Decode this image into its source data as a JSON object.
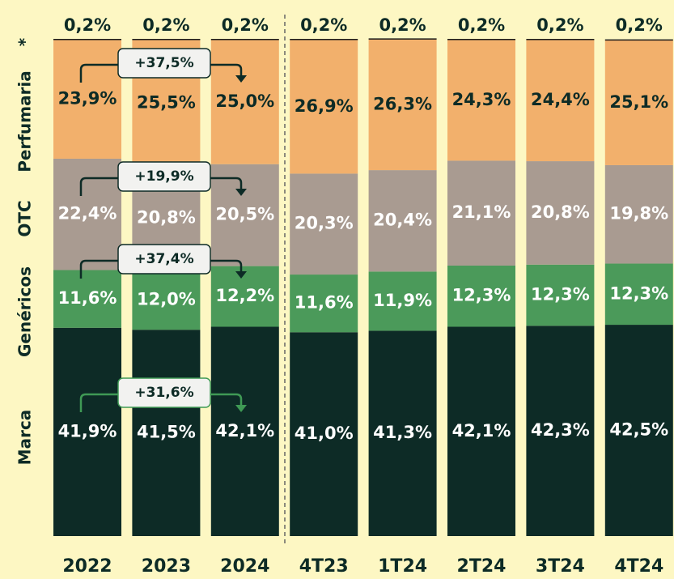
{
  "chart_data": {
    "type": "stacked_bar",
    "categories": [
      "2022",
      "2023",
      "2024",
      "4T23",
      "1T24",
      "2T24",
      "3T24",
      "4T24"
    ],
    "ylim": [
      0,
      100
    ],
    "series": [
      {
        "name": "Marca",
        "color": "#0d2b26",
        "values": [
          41.9,
          41.5,
          42.1,
          41.0,
          41.3,
          42.1,
          42.3,
          42.5
        ],
        "value_labels": [
          "41,9%",
          "41,5%",
          "42,1%",
          "41,0%",
          "41,3%",
          "42,1%",
          "42,3%",
          "42,5%"
        ]
      },
      {
        "name": "Genéricos",
        "color": "#4b9a5a",
        "values": [
          11.6,
          12.0,
          12.2,
          11.6,
          11.9,
          12.3,
          12.3,
          12.3
        ],
        "value_labels": [
          "11,6%",
          "12,0%",
          "12,2%",
          "11,6%",
          "11,9%",
          "12,3%",
          "12,3%",
          "12,3%"
        ]
      },
      {
        "name": "OTC",
        "color": "#a99b91",
        "values": [
          22.4,
          20.8,
          20.5,
          20.3,
          20.4,
          21.1,
          20.8,
          19.8
        ],
        "value_labels": [
          "22,4%",
          "20,8%",
          "20,5%",
          "20,3%",
          "20,4%",
          "21,1%",
          "20,8%",
          "19,8%"
        ]
      },
      {
        "name": "Perfumaria",
        "color": "#f2b06c",
        "values": [
          23.9,
          25.5,
          25.0,
          26.9,
          26.3,
          24.3,
          24.4,
          25.1
        ],
        "value_labels": [
          "23,9%",
          "25,5%",
          "25,0%",
          "26,9%",
          "26,3%",
          "24,3%",
          "24,4%",
          "25,1%"
        ]
      },
      {
        "name": "*",
        "color": "#1b1b1b",
        "values": [
          0.2,
          0.2,
          0.2,
          0.2,
          0.2,
          0.2,
          0.2,
          0.2
        ],
        "value_labels": [
          "0,2%",
          "0,2%",
          "0,2%",
          "0,2%",
          "0,2%",
          "0,2%",
          "0,2%",
          "0,2%"
        ]
      }
    ],
    "annotations": [
      "+31,6%",
      "+37,4%",
      "+19,9%",
      "+37,5%"
    ]
  }
}
